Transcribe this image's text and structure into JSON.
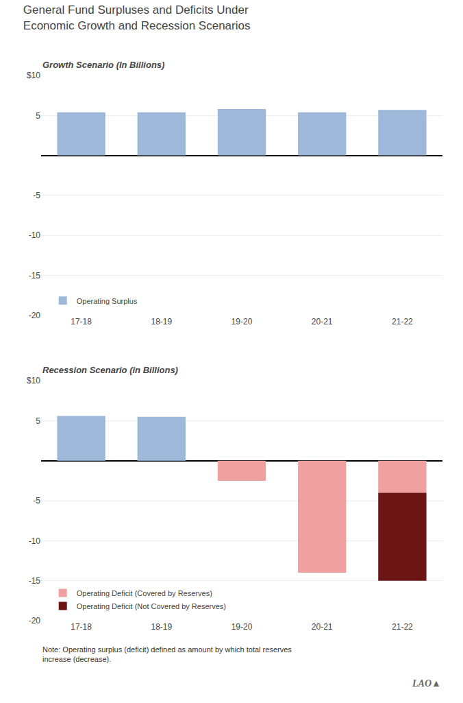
{
  "title": "General Fund Surpluses and Deficits Under\nEconomic Growth and Recession Scenarios",
  "annotations": [
    "Note: Operating surplus (deficit) defined as amount by which total reserves\nincrease (decrease).",
    "LAO▲"
  ],
  "chart_data": [
    {
      "type": "bar",
      "subtitle": "Growth Scenario (In Billions)",
      "categories": [
        "17-18",
        "18-19",
        "19-20",
        "20-21",
        "21-22"
      ],
      "series": [
        {
          "name": "Operating Surplus",
          "color": "#9DB8D9",
          "values": [
            5.4,
            5.4,
            5.8,
            5.4,
            5.7
          ]
        }
      ],
      "ylim": [
        -20,
        10
      ],
      "yticks": [
        -20,
        -15,
        -10,
        -5,
        5,
        {
          "value": 10,
          "label": "$10"
        }
      ],
      "grid": true,
      "legend": "lower left"
    },
    {
      "type": "bar",
      "subtitle": "Recession Scenario (in Billions)",
      "categories": [
        "17-18",
        "18-19",
        "19-20",
        "20-21",
        "21-22"
      ],
      "series": [
        {
          "name": "Operating Surplus",
          "color": "#9DB8D9",
          "values": [
            5.6,
            5.5,
            0,
            0,
            0
          ]
        },
        {
          "name": "Operating Deficit (Covered by Reserves)",
          "color": "#F0A0A0",
          "values": [
            0,
            0,
            -2.5,
            -14.0,
            -4.0
          ]
        },
        {
          "name": "Operating Deficit (Not Covered by Reserves)",
          "color": "#6B1515",
          "values": [
            0,
            0,
            0,
            0,
            -11.0
          ]
        }
      ],
      "stacked": true,
      "ylim": [
        -20,
        10
      ],
      "yticks": [
        -20,
        -15,
        -10,
        -5,
        5,
        {
          "value": 10,
          "label": "$10"
        }
      ],
      "grid": true,
      "legend": "lower left"
    }
  ]
}
